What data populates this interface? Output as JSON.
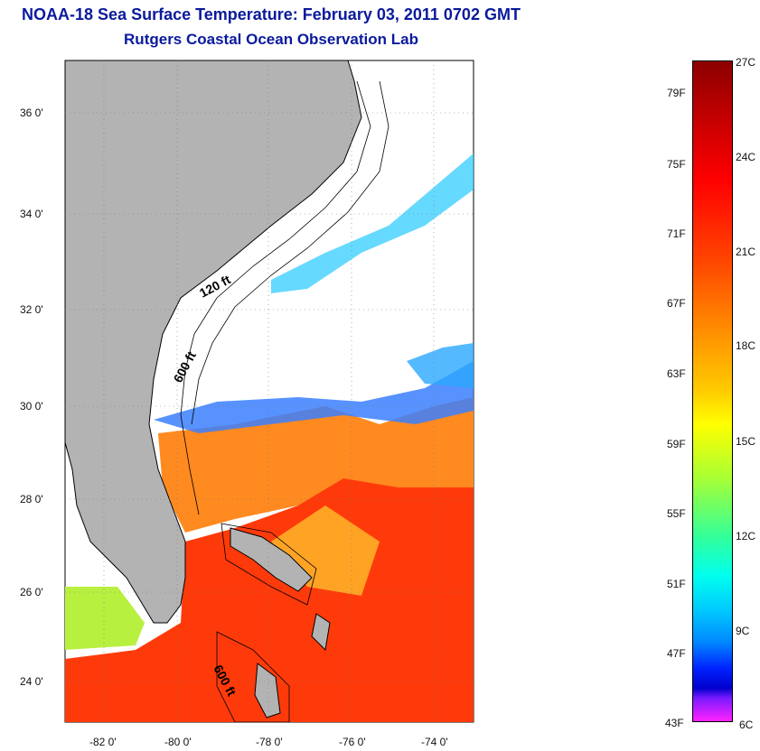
{
  "title": "NOAA-18 Sea Surface Temperature:  February 03, 2011 0702 GMT",
  "subtitle": "Rutgers Coastal Ocean Observation Lab",
  "map": {
    "lat_ticks": [
      "36 0'",
      "34 0'",
      "32 0'",
      "30 0'",
      "28 0'",
      "26 0'",
      "24 0'"
    ],
    "lon_ticks": [
      "-82 0'",
      "-80 0'",
      "-78 0'",
      "-76 0'",
      "-74 0'"
    ],
    "contour_labels": [
      "120 ft",
      "600 ft",
      "600 ft"
    ]
  },
  "colorbar": {
    "fahrenheit_labels": [
      "79F",
      "75F",
      "71F",
      "67F",
      "63F",
      "59F",
      "55F",
      "51F",
      "47F",
      "43F"
    ],
    "celsius_labels": [
      "27C",
      "24C",
      "21C",
      "18C",
      "15C",
      "12C",
      "9C",
      "6C"
    ]
  },
  "colors": {
    "title": "#0a1a9c",
    "land": "#b3b3b3",
    "warm": "#ff3300",
    "cool": "#3399ff"
  }
}
